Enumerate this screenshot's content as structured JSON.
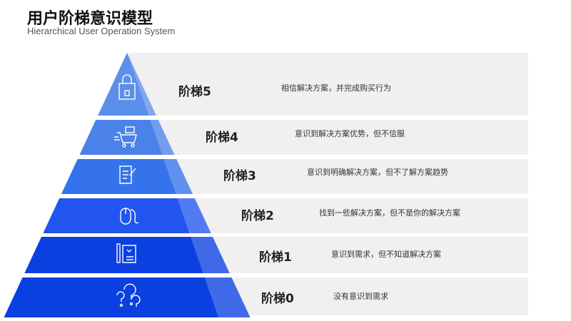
{
  "header": {
    "title": "用户阶梯意识模型",
    "subtitle": "Hierarchical User Operation System"
  },
  "levels": [
    {
      "label": "阶梯5",
      "desc": "相信解决方案，并完成购买行为",
      "icon": "shopping-bag-icon",
      "color": "#5b8fe9"
    },
    {
      "label": "阶梯4",
      "desc": "意识到解决方案优势，但不信服",
      "icon": "shopping-cart-icon",
      "color": "#4b82ea"
    },
    {
      "label": "阶梯3",
      "desc": "意识到明确解决方案，但不了解方案趋势",
      "icon": "document-pen-icon",
      "color": "#3473ec"
    },
    {
      "label": "阶梯2",
      "desc": "找到一些解决方案，但不是你的解决方案",
      "icon": "mouse-icon",
      "color": "#2255ef"
    },
    {
      "label": "阶梯1",
      "desc": "意识到需求，但不知道解决方案",
      "icon": "wishlist-icon",
      "color": "#0b3fe0"
    },
    {
      "label": "阶梯0",
      "desc": "没有意识到需求",
      "icon": "question-marks-icon",
      "color": "#0a3fe0"
    }
  ]
}
